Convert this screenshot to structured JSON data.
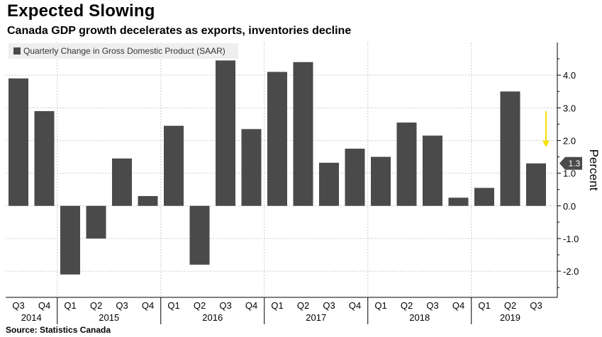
{
  "header": {
    "title": "Expected Slowing",
    "subtitle": "Canada GDP growth decelerates as exports, inventories decline"
  },
  "footer": {
    "source": "Source: Statistics Canada"
  },
  "chart_data": {
    "type": "bar",
    "categories": [
      "Q3",
      "Q4",
      "Q1",
      "Q2",
      "Q3",
      "Q4",
      "Q1",
      "Q2",
      "Q3",
      "Q4",
      "Q1",
      "Q2",
      "Q3",
      "Q4",
      "Q1",
      "Q2",
      "Q3",
      "Q4",
      "Q1",
      "Q2",
      "Q3"
    ],
    "years": [
      {
        "label": "2014",
        "start": 0,
        "end": 1
      },
      {
        "label": "2015",
        "start": 2,
        "end": 5
      },
      {
        "label": "2016",
        "start": 6,
        "end": 9
      },
      {
        "label": "2017",
        "start": 10,
        "end": 13
      },
      {
        "label": "2018",
        "start": 14,
        "end": 17
      },
      {
        "label": "2019",
        "start": 18,
        "end": 20
      }
    ],
    "series": [
      {
        "name": "Quarterly Change in Gross Domestic Product (SAAR)",
        "values": [
          3.9,
          2.9,
          -2.1,
          -1.0,
          1.45,
          0.3,
          2.45,
          -1.8,
          4.45,
          2.35,
          4.1,
          4.4,
          1.32,
          1.75,
          1.5,
          2.55,
          2.15,
          0.25,
          0.55,
          3.5,
          1.3
        ]
      }
    ],
    "ylabel": "Percent",
    "ylim": [
      -2.8,
      5.0
    ],
    "yticks": [
      -2.0,
      -1.0,
      0.0,
      1.0,
      2.0,
      3.0,
      4.0
    ],
    "ytick_labels": [
      "-2.0",
      "-1.0",
      "0.0",
      "1.0",
      "2.0",
      "3.0",
      "4.0"
    ],
    "last_value_label": "1.3",
    "annotation": {
      "type": "arrow",
      "color": "#f5e000",
      "at_category_index": 20,
      "from_value": 2.9,
      "to_value": 1.8
    },
    "grid": true,
    "legend_position": "top-left",
    "colors": {
      "bar": "#4a4a4a",
      "grid": "#cccccc",
      "last_value_badge": "#4a4a4a",
      "legend_bg": "#efefef"
    }
  }
}
